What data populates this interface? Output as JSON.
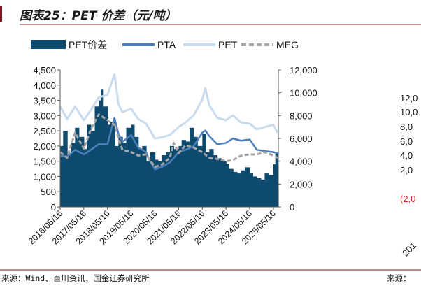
{
  "header": {
    "title": "图表25：PET 价差（元/吨）"
  },
  "footer": {
    "source_left": "来源：Wind、百川资讯、国金证券研究所",
    "source_right": "来源："
  },
  "colors": {
    "title_bar": "#7a1c22",
    "pet_spread": "#0d4a6e",
    "pta": "#4a7fbc",
    "pet": "#c9dcef",
    "meg": "#a6a6a6",
    "axis": "#595959",
    "ghost_red": "#d3282b"
  },
  "ghost_labels": {
    "values": [
      "12,0",
      "10,0",
      "8,0",
      "6,0",
      "4,0",
      "2,0"
    ],
    "negative": "(2,0",
    "x_fragment": "201"
  },
  "chart_data": {
    "type": "bar+line",
    "title": "图表25：PET 价差（元/吨）",
    "legend": {
      "position": "top",
      "items": [
        {
          "name": "PET价差",
          "style": "bar"
        },
        {
          "name": "PTA",
          "style": "solid-line"
        },
        {
          "name": "PET",
          "style": "light-line"
        },
        {
          "name": "MEG",
          "style": "dashed-line"
        }
      ]
    },
    "y_left": {
      "min": 0,
      "max": 4500,
      "step": 500,
      "ticks": [
        "0",
        "500",
        "1,000",
        "1,500",
        "2,000",
        "2,500",
        "3,000",
        "3,500",
        "4,000",
        "4,500"
      ]
    },
    "y_right": {
      "min": 0,
      "max": 12000,
      "step": 2000,
      "ticks": [
        "0",
        "2,000",
        "4,000",
        "6,000",
        "8,000",
        "10,000",
        "12,000"
      ]
    },
    "x_ticks": [
      "2016/05/16",
      "2017/05/16",
      "2018/05/16",
      "2019/05/16",
      "2020/05/16",
      "2021/05/16",
      "2022/05/16",
      "2023/05/16",
      "2024/05/16",
      "2025/05/16"
    ],
    "x_range": [
      "2016/05/16",
      "2025/07/31"
    ],
    "series": [
      {
        "name": "PET价差",
        "axis": "left",
        "type": "bar",
        "points": [
          [
            "2016/05/16",
            2000
          ],
          [
            "2016/07/01",
            2500
          ],
          [
            "2016/09/01",
            1700
          ],
          [
            "2016/11/01",
            2100
          ],
          [
            "2017/01/01",
            2600
          ],
          [
            "2017/03/01",
            2300
          ],
          [
            "2017/05/16",
            1900
          ],
          [
            "2017/07/01",
            2700
          ],
          [
            "2017/09/01",
            2500
          ],
          [
            "2017/11/01",
            3300
          ],
          [
            "2018/01/01",
            3500
          ],
          [
            "2018/02/01",
            3850
          ],
          [
            "2018/03/01",
            3300
          ],
          [
            "2018/05/16",
            2700
          ],
          [
            "2018/07/01",
            2800
          ],
          [
            "2018/09/01",
            2000
          ],
          [
            "2018/11/01",
            2300
          ],
          [
            "2019/01/01",
            2100
          ],
          [
            "2019/03/01",
            2600
          ],
          [
            "2019/05/16",
            2700
          ],
          [
            "2019/07/01",
            2300
          ],
          [
            "2019/09/01",
            1900
          ],
          [
            "2019/11/01",
            2000
          ],
          [
            "2020/01/01",
            1500
          ],
          [
            "2020/03/01",
            1800
          ],
          [
            "2020/05/16",
            1550
          ],
          [
            "2020/07/01",
            1500
          ],
          [
            "2020/09/01",
            1700
          ],
          [
            "2020/11/01",
            1800
          ],
          [
            "2021/01/01",
            2000
          ],
          [
            "2021/03/01",
            1900
          ],
          [
            "2021/05/16",
            2000
          ],
          [
            "2021/07/01",
            2200
          ],
          [
            "2021/09/01",
            2150
          ],
          [
            "2021/11/01",
            2600
          ],
          [
            "2022/01/01",
            2300
          ],
          [
            "2022/03/01",
            2000
          ],
          [
            "2022/05/16",
            2400
          ],
          [
            "2022/07/01",
            1800
          ],
          [
            "2022/09/01",
            1900
          ],
          [
            "2022/11/01",
            1700
          ],
          [
            "2023/01/01",
            1600
          ],
          [
            "2023/03/01",
            1500
          ],
          [
            "2023/05/16",
            1400
          ],
          [
            "2023/07/01",
            1250
          ],
          [
            "2023/09/01",
            1150
          ],
          [
            "2023/11/01",
            1100
          ],
          [
            "2024/01/01",
            1200
          ],
          [
            "2024/03/01",
            1300
          ],
          [
            "2024/05/16",
            1100
          ],
          [
            "2024/07/01",
            1000
          ],
          [
            "2024/09/01",
            950
          ],
          [
            "2024/11/01",
            900
          ],
          [
            "2025/01/01",
            1100
          ],
          [
            "2025/03/01",
            1050
          ],
          [
            "2025/05/16",
            1400
          ],
          [
            "2025/06/15",
            1800
          ],
          [
            "2025/07/20",
            600
          ]
        ]
      },
      {
        "name": "PTA",
        "axis": "right",
        "type": "line",
        "points": [
          [
            "2016/05/16",
            4500
          ],
          [
            "2016/09/01",
            4400
          ],
          [
            "2017/01/01",
            5000
          ],
          [
            "2017/05/16",
            4600
          ],
          [
            "2017/09/01",
            5000
          ],
          [
            "2018/01/01",
            5500
          ],
          [
            "2018/05/16",
            5500
          ],
          [
            "2018/09/01",
            7800
          ],
          [
            "2018/11/01",
            6400
          ],
          [
            "2019/01/01",
            5700
          ],
          [
            "2019/05/16",
            6300
          ],
          [
            "2019/09/01",
            5200
          ],
          [
            "2020/01/01",
            4800
          ],
          [
            "2020/03/01",
            4000
          ],
          [
            "2020/05/16",
            3300
          ],
          [
            "2020/09/01",
            3500
          ],
          [
            "2021/01/01",
            3900
          ],
          [
            "2021/05/16",
            4800
          ],
          [
            "2021/09/01",
            5000
          ],
          [
            "2022/01/01",
            5300
          ],
          [
            "2022/05/16",
            6500
          ],
          [
            "2022/07/01",
            6700
          ],
          [
            "2022/09/01",
            6200
          ],
          [
            "2023/01/01",
            5500
          ],
          [
            "2023/05/16",
            5600
          ],
          [
            "2023/09/01",
            6000
          ],
          [
            "2024/01/01",
            5800
          ],
          [
            "2024/05/16",
            5900
          ],
          [
            "2024/09/01",
            5000
          ],
          [
            "2025/01/01",
            4900
          ],
          [
            "2025/05/16",
            4800
          ],
          [
            "2025/07/20",
            4700
          ]
        ]
      },
      {
        "name": "PET",
        "axis": "right",
        "type": "line",
        "points": [
          [
            "2016/05/16",
            8800
          ],
          [
            "2016/09/01",
            7700
          ],
          [
            "2017/01/01",
            8800
          ],
          [
            "2017/05/16",
            7600
          ],
          [
            "2017/09/01",
            8500
          ],
          [
            "2018/01/01",
            9600
          ],
          [
            "2018/05/16",
            9800
          ],
          [
            "2018/09/01",
            11600
          ],
          [
            "2018/11/01",
            9000
          ],
          [
            "2019/01/01",
            8300
          ],
          [
            "2019/05/16",
            8600
          ],
          [
            "2019/09/01",
            7700
          ],
          [
            "2020/01/01",
            7300
          ],
          [
            "2020/05/16",
            6000
          ],
          [
            "2020/09/01",
            6100
          ],
          [
            "2021/01/01",
            6300
          ],
          [
            "2021/05/16",
            7000
          ],
          [
            "2021/09/01",
            7400
          ],
          [
            "2022/01/01",
            8000
          ],
          [
            "2022/05/16",
            9400
          ],
          [
            "2022/07/01",
            10400
          ],
          [
            "2022/09/01",
            8900
          ],
          [
            "2023/01/01",
            7800
          ],
          [
            "2023/05/16",
            7600
          ],
          [
            "2023/09/01",
            8000
          ],
          [
            "2024/01/01",
            7400
          ],
          [
            "2024/05/16",
            7300
          ],
          [
            "2024/09/01",
            6800
          ],
          [
            "2025/01/01",
            7000
          ],
          [
            "2025/05/16",
            7200
          ],
          [
            "2025/07/20",
            6500
          ]
        ]
      },
      {
        "name": "MEG",
        "axis": "right",
        "type": "line",
        "points": [
          [
            "2016/05/16",
            4800
          ],
          [
            "2016/09/01",
            4300
          ],
          [
            "2017/01/01",
            6500
          ],
          [
            "2017/05/16",
            5100
          ],
          [
            "2017/09/01",
            6800
          ],
          [
            "2018/01/01",
            8100
          ],
          [
            "2018/05/16",
            7600
          ],
          [
            "2018/09/01",
            7200
          ],
          [
            "2018/11/01",
            6000
          ],
          [
            "2019/01/01",
            5000
          ],
          [
            "2019/05/16",
            4800
          ],
          [
            "2019/09/01",
            4500
          ],
          [
            "2020/01/01",
            4600
          ],
          [
            "2020/05/16",
            3500
          ],
          [
            "2020/09/01",
            3700
          ],
          [
            "2021/01/01",
            4300
          ],
          [
            "2021/03/01",
            5600
          ],
          [
            "2021/05/16",
            4700
          ],
          [
            "2021/09/01",
            5400
          ],
          [
            "2022/01/01",
            5200
          ],
          [
            "2022/05/16",
            4800
          ],
          [
            "2022/09/01",
            4300
          ],
          [
            "2023/01/01",
            4200
          ],
          [
            "2023/05/16",
            4000
          ],
          [
            "2023/09/01",
            4100
          ],
          [
            "2024/01/01",
            4500
          ],
          [
            "2024/05/16",
            4600
          ],
          [
            "2024/09/01",
            4600
          ],
          [
            "2025/01/01",
            4800
          ],
          [
            "2025/05/16",
            4500
          ],
          [
            "2025/07/20",
            4300
          ]
        ]
      }
    ]
  }
}
